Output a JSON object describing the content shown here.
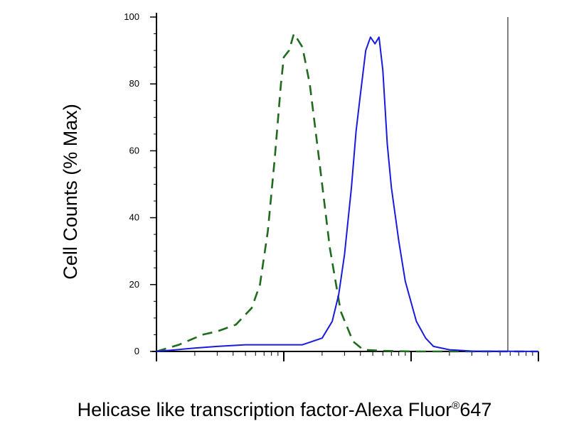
{
  "chart_data": {
    "type": "line",
    "xlabel": "Helicase like transcription factor-Alexa Fluor",
    "xlabel_mark": "®",
    "xlabel_suffix": "647",
    "ylabel": "Cell Counts (% Max)",
    "x_scale": "log",
    "xlim": [
      1,
      1000
    ],
    "ylim": [
      0,
      100
    ],
    "y_ticks": [
      0,
      20,
      40,
      60,
      80,
      100
    ],
    "grid": false,
    "series": [
      {
        "style": "dashed",
        "color": "#1e6b1e",
        "x": [
          1,
          1.5,
          2.3,
          3.0,
          4.2,
          5.6,
          6.5,
          7.5,
          8.5,
          9.5,
          10,
          11,
          12,
          13,
          14,
          16,
          19,
          23,
          28,
          35,
          42,
          60,
          100,
          300,
          1000
        ],
        "y": [
          0,
          2,
          5,
          6,
          8,
          13,
          20,
          36,
          58,
          80,
          88,
          90,
          95,
          93,
          91,
          80,
          57,
          31,
          12,
          3,
          0.5,
          0.2,
          0,
          0,
          0
        ]
      },
      {
        "style": "solid",
        "color": "#1a1adc",
        "x": [
          1,
          2,
          3,
          5,
          7,
          10,
          14,
          20,
          24,
          27,
          30,
          34,
          37,
          40,
          44,
          48,
          52,
          56,
          60,
          65,
          70,
          80,
          90,
          110,
          130,
          150,
          200,
          300,
          1000
        ],
        "y": [
          0,
          1,
          1.5,
          2,
          2,
          2,
          2,
          4,
          9,
          17,
          29,
          49,
          66,
          77,
          90,
          94,
          92,
          94,
          84,
          62,
          49,
          33,
          21,
          9,
          4,
          1.5,
          0.5,
          0.1,
          0
        ]
      }
    ]
  }
}
